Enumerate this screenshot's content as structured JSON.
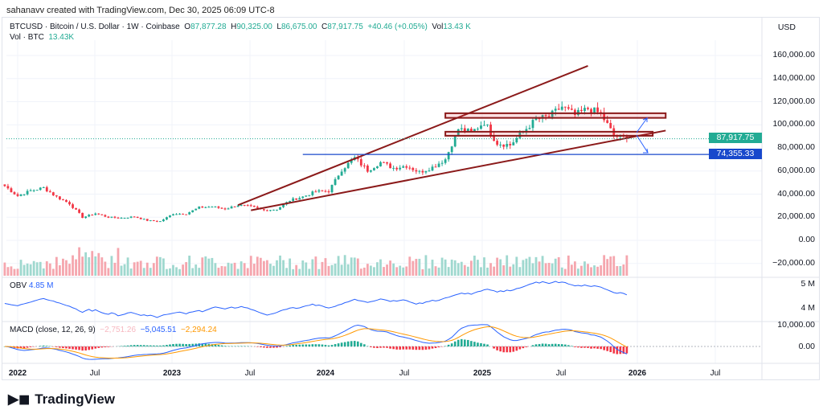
{
  "credit": "sahanavv created with TradingView.com, Dec 30, 2025 06:09 UTC-8",
  "header": {
    "symbol": "BTCUSD · Bitcoin / U.S. Dollar · 1W · Coinbase",
    "o_label": "O",
    "o": "87,877.28",
    "h_label": "H",
    "h": "90,325.00",
    "l_label": "L",
    "l": "86,675.00",
    "c_label": "C",
    "c": "87,917.75",
    "change": "+40.46 (+0.05%)",
    "vol_label": "Vol",
    "vol": "13.43 K",
    "vol_row_label": "Vol · BTC",
    "vol_row_value": "13.43K"
  },
  "price_axis": {
    "currency": "USD",
    "ticks": [
      "160,000.00",
      "140,000.00",
      "120,000.00",
      "100,000.00",
      "80,000.00",
      "60,000.00",
      "40,000.00",
      "20,000.00",
      "0.00",
      "−20,000.00"
    ],
    "last_price": "87,917.75",
    "line_price": "74,355.33",
    "last_color": "#22ab94",
    "line_color": "#1848cc"
  },
  "obv": {
    "label": "OBV",
    "value": "4.85 M",
    "ticks": [
      "5 M",
      "4 M"
    ]
  },
  "macd": {
    "label": "MACD (close, 12, 26, 9)",
    "hist": "−2,751.26",
    "macd": "−5,045.51",
    "signal": "−2,294.24",
    "ticks": [
      "10,000.00",
      "0.00"
    ]
  },
  "time_axis": [
    "2022",
    "Jul",
    "2023",
    "Jul",
    "2024",
    "Jul",
    "2025",
    "Jul",
    "2026",
    "Jul"
  ],
  "logo": "TradingView",
  "colors": {
    "up": "#22ab94",
    "down": "#f23645",
    "drawing": "#8b1a1a"
  },
  "chart_data": {
    "type": "candlestick",
    "ylim": [
      -20000,
      160000
    ],
    "monthly_close": {
      "x": [
        "2021-12",
        "2022-01",
        "2022-02",
        "2022-03",
        "2022-04",
        "2022-05",
        "2022-06",
        "2022-07",
        "2022-08",
        "2022-09",
        "2022-10",
        "2022-11",
        "2022-12",
        "2023-01",
        "2023-02",
        "2023-03",
        "2023-04",
        "2023-05",
        "2023-06",
        "2023-07",
        "2023-08",
        "2023-09",
        "2023-10",
        "2023-11",
        "2023-12",
        "2024-01",
        "2024-02",
        "2024-03",
        "2024-04",
        "2024-05",
        "2024-06",
        "2024-07",
        "2024-08",
        "2024-09",
        "2024-10",
        "2024-11",
        "2024-12",
        "2025-01",
        "2025-02",
        "2025-03",
        "2025-04",
        "2025-05",
        "2025-06",
        "2025-07",
        "2025-08",
        "2025-09",
        "2025-10",
        "2025-11",
        "2025-12"
      ],
      "y": [
        47000,
        38500,
        43000,
        45500,
        37700,
        31800,
        19900,
        23300,
        20000,
        19400,
        20500,
        17200,
        16500,
        23100,
        23100,
        28500,
        29200,
        27200,
        30500,
        29200,
        26000,
        27000,
        34600,
        37700,
        42300,
        42600,
        61200,
        71300,
        60600,
        67500,
        62700,
        64600,
        59000,
        63300,
        70200,
        96400,
        93400,
        102400,
        84300,
        82500,
        94200,
        104600,
        107100,
        115700,
        108200,
        114000,
        109500,
        90400,
        87918
      ]
    },
    "drawings": [
      {
        "type": "trendline",
        "from": [
          "2023-06",
          30500
        ],
        "to": [
          "2025-09",
          151000
        ]
      },
      {
        "type": "trendline",
        "from": [
          "2023-07",
          26000
        ],
        "to": [
          "2026-03",
          95000
        ]
      },
      {
        "type": "rectangle",
        "from": [
          "2024-10",
          106000
        ],
        "to": [
          "2026-03",
          110000
        ]
      },
      {
        "type": "rectangle",
        "from": [
          "2024-10",
          90500
        ],
        "to": [
          "2026-02",
          94000
        ]
      },
      {
        "type": "horizontal_line",
        "from": "2023-11",
        "price": 74355.33
      }
    ]
  }
}
